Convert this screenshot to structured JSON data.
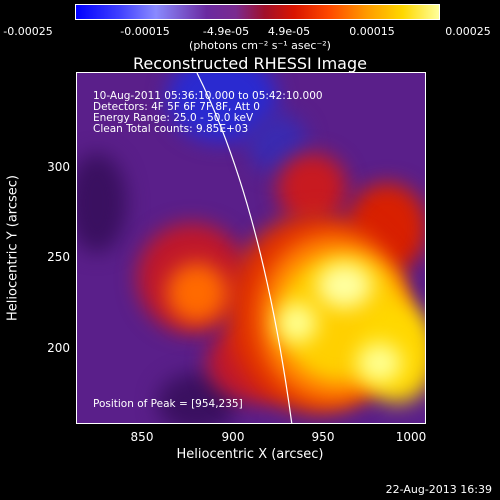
{
  "colorbar": {
    "ticks": [
      "-0.00025",
      "-0.00015",
      "-4.9e-05",
      "4.9e-05",
      "0.00015",
      "0.00025"
    ],
    "unit": "(photons cm⁻² s⁻¹ asec⁻²)"
  },
  "plot": {
    "title": "Reconstructed RHESSI Image",
    "info_lines": [
      "10-Aug-2011 05:36:10.000 to 05:42:10.000",
      "Detectors: 4F 5F 6F 7F 8F, Att 0",
      "Energy Range: 25.0 - 50.0 keV",
      "Clean    Total counts: 9.85E+03"
    ],
    "peak_label": "Position of Peak = [954,235]",
    "x_ticks": [
      "850",
      "900",
      "950",
      "1000"
    ],
    "y_ticks": [
      "300",
      "250",
      "200"
    ],
    "xlabel": "Heliocentric X (arcsec)",
    "ylabel": "Heliocentric Y (arcsec)"
  },
  "footer": {
    "date": "22-Aug-2013 16:39"
  },
  "colors": {
    "background": "#5a1f8a",
    "limb": "#ffffff",
    "hot": "#ffff9a"
  }
}
